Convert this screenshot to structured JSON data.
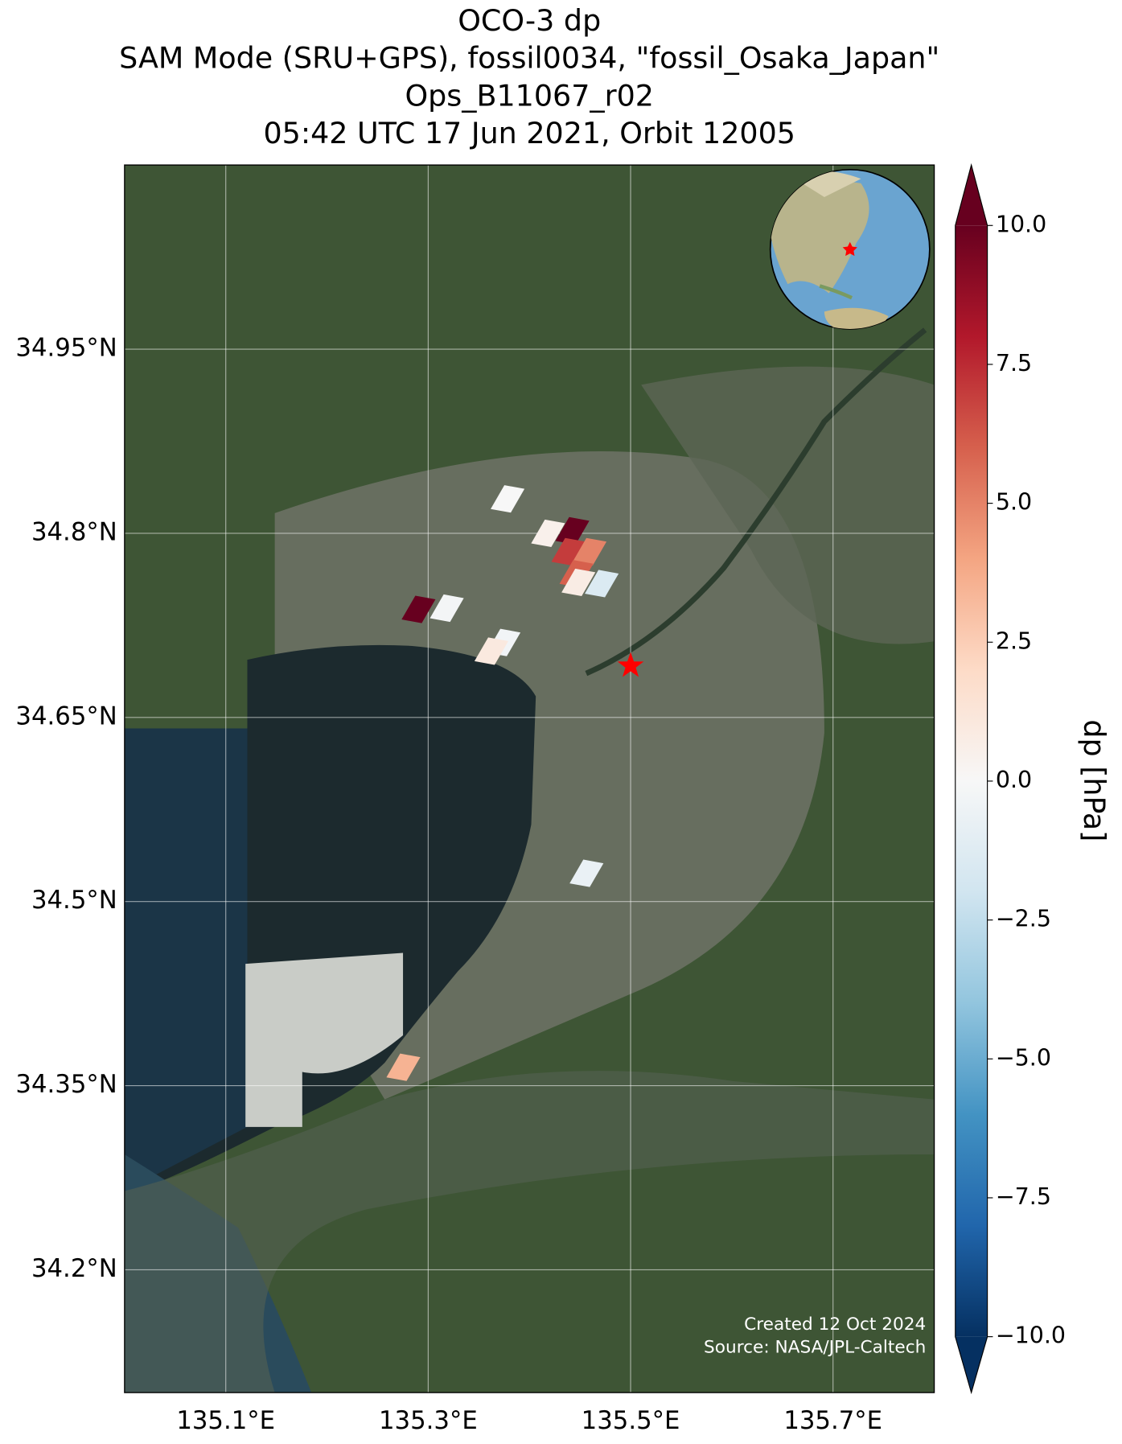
{
  "chart_data": {
    "type": "map",
    "title": [
      "OCO-3 dp",
      "SAM Mode (SRU+GPS), fossil0034, \"fossil_Osaka_Japan\"",
      "Ops_B11067_r02",
      "05:42 UTC 17 Jun 2021, Orbit 12005"
    ],
    "xlim": [
      135.0,
      135.8
    ],
    "ylim": [
      34.1,
      35.1
    ],
    "xticks": [
      {
        "value": 135.1,
        "label": "135.1°E"
      },
      {
        "value": 135.3,
        "label": "135.3°E"
      },
      {
        "value": 135.5,
        "label": "135.5°E"
      },
      {
        "value": 135.7,
        "label": "135.7°E"
      }
    ],
    "yticks": [
      {
        "value": 34.2,
        "label": "34.2°N"
      },
      {
        "value": 34.35,
        "label": "34.35°N"
      },
      {
        "value": 34.5,
        "label": "34.5°N"
      },
      {
        "value": 34.65,
        "label": "34.65°N"
      },
      {
        "value": 34.8,
        "label": "34.8°N"
      },
      {
        "value": 34.95,
        "label": "34.95°N"
      }
    ],
    "grid": true,
    "footprints": {
      "lon": [
        135.378,
        135.418,
        135.442,
        135.438,
        135.459,
        135.446,
        135.448,
        135.471,
        135.29,
        135.318,
        135.374,
        135.362,
        135.456,
        135.275
      ],
      "lat": [
        34.828,
        34.8,
        34.802,
        34.785,
        34.785,
        34.767,
        34.76,
        34.759,
        34.738,
        34.739,
        34.711,
        34.704,
        34.523,
        34.365
      ],
      "values": [
        0,
        0.5,
        10,
        7,
        5,
        6,
        0.8,
        -1.5,
        10,
        -0.2,
        -0.3,
        1,
        -0.7,
        3.5
      ]
    },
    "target": {
      "lon": 135.5,
      "lat": 34.692,
      "color": "#ff0000"
    },
    "colorbar": {
      "label": "dp [hPa]",
      "range": [
        -10,
        10
      ],
      "ticks": [
        {
          "value": -10,
          "label": "−10.0"
        },
        {
          "value": -7.5,
          "label": "−7.5"
        },
        {
          "value": -5,
          "label": "−5.0"
        },
        {
          "value": -2.5,
          "label": "−2.5"
        },
        {
          "value": 0,
          "label": "0.0"
        },
        {
          "value": 2.5,
          "label": "2.5"
        },
        {
          "value": 5,
          "label": "5.0"
        },
        {
          "value": 7.5,
          "label": "7.5"
        },
        {
          "value": 10,
          "label": "10.0"
        }
      ],
      "colors": [
        "#053061",
        "#2166ac",
        "#4393c3",
        "#92c5de",
        "#d1e5f0",
        "#f7f7f7",
        "#fddbc7",
        "#f4a582",
        "#d6604d",
        "#b2182b",
        "#67001f"
      ]
    },
    "credits": [
      "Created 12 Oct 2024",
      "Source: NASA/JPL-Caltech"
    ]
  }
}
